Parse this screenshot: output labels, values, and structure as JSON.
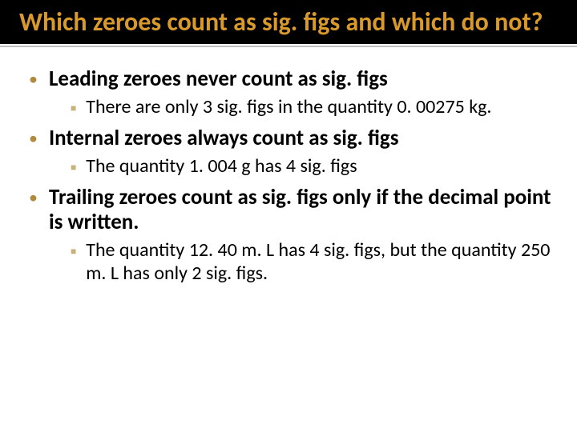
{
  "title": "Which zeroes count as sig. figs and which do not?",
  "colors": {
    "title_bg": "#000000",
    "title_text": "#d99a2b",
    "underline": "#bfbfbf",
    "body_text": "#000000",
    "l1_bullet": "#b08a3e",
    "l2_bullet": "#c9b27a",
    "slide_bg": "#ffffff"
  },
  "typography": {
    "title_fontsize": 32,
    "title_weight": 600,
    "l1_fontsize": 27,
    "l1_weight": 700,
    "l2_fontsize": 24,
    "l2_weight": 400,
    "font_family": "Calibri"
  },
  "bullets": {
    "b1": "Leading zeroes never count as sig. figs",
    "b1a": "There are only 3 sig. figs in the quantity 0. 00275 kg.",
    "b2": "Internal zeroes always count as sig. figs",
    "b2a": "The quantity 1. 004 g has 4 sig. figs",
    "b3": "Trailing zeroes count as sig. figs only if the decimal point is written.",
    "b3a": "The quantity 12. 40 m. L has 4 sig. figs, but the quantity 250 m. L has only 2 sig. figs."
  }
}
